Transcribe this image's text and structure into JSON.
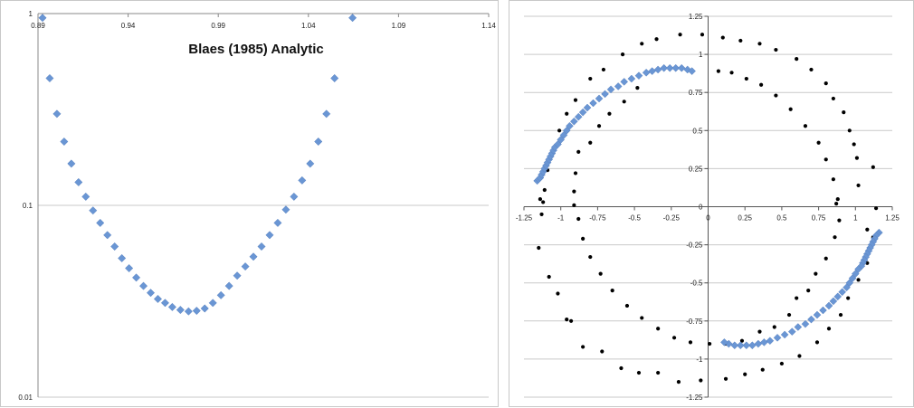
{
  "chart_data": [
    {
      "type": "scatter",
      "title": "Blaes (1985) Analytic",
      "xlabel": "",
      "ylabel": "",
      "xlim": [
        0.89,
        1.14
      ],
      "ylim": [
        0.01,
        1
      ],
      "yscale": "log",
      "x_ticks": [
        "0.89",
        "0.94",
        "0.99",
        "1.04",
        "1.09",
        "1.14"
      ],
      "y_ticks": [
        "1",
        "0.1",
        "0.01"
      ],
      "grid": "horizontal",
      "legend": "none",
      "series": [
        {
          "marker": "diamond",
          "color": "#6a96d4",
          "points": [
            [
              0.8925,
              0.95
            ],
            [
              0.8965,
              0.46
            ],
            [
              0.9005,
              0.3
            ],
            [
              0.9045,
              0.215
            ],
            [
              0.9085,
              0.165
            ],
            [
              0.9125,
              0.132
            ],
            [
              0.9165,
              0.111
            ],
            [
              0.9205,
              0.094
            ],
            [
              0.9245,
              0.081
            ],
            [
              0.9285,
              0.07
            ],
            [
              0.9325,
              0.061
            ],
            [
              0.9365,
              0.053
            ],
            [
              0.9405,
              0.047
            ],
            [
              0.9445,
              0.042
            ],
            [
              0.9485,
              0.038
            ],
            [
              0.9525,
              0.035
            ],
            [
              0.9565,
              0.0325
            ],
            [
              0.9605,
              0.031
            ],
            [
              0.9645,
              0.0295
            ],
            [
              0.969,
              0.0285
            ],
            [
              0.9735,
              0.028
            ],
            [
              0.978,
              0.0282
            ],
            [
              0.9825,
              0.029
            ],
            [
              0.987,
              0.031
            ],
            [
              0.9915,
              0.034
            ],
            [
              0.996,
              0.038
            ],
            [
              1.0005,
              0.043
            ],
            [
              1.005,
              0.048
            ],
            [
              1.0095,
              0.054
            ],
            [
              1.014,
              0.061
            ],
            [
              1.0185,
              0.07
            ],
            [
              1.023,
              0.081
            ],
            [
              1.0275,
              0.095
            ],
            [
              1.032,
              0.111
            ],
            [
              1.0365,
              0.135
            ],
            [
              1.041,
              0.165
            ],
            [
              1.0455,
              0.215
            ],
            [
              1.05,
              0.3
            ],
            [
              1.0545,
              0.46
            ],
            [
              1.0645,
              0.95
            ]
          ]
        }
      ]
    },
    {
      "type": "scatter",
      "title": "",
      "xlabel": "",
      "ylabel": "",
      "xlim": [
        -1.25,
        1.25
      ],
      "ylim": [
        -1.25,
        1.25
      ],
      "x_ticks": [
        "-1.25",
        "-1",
        "-0.75",
        "-0.5",
        "-0.25",
        "0",
        "0.25",
        "0.5",
        "0.75",
        "1",
        "1.25"
      ],
      "y_ticks": [
        "1.25",
        "1",
        "0.75",
        "0.5",
        "0.25",
        "0",
        "-0.25",
        "-0.5",
        "-0.75",
        "-1",
        "-1.25"
      ],
      "grid": "horizontal",
      "legend": "none",
      "series": [
        {
          "marker": "dot",
          "color": "#000000",
          "points": [
            [
              -0.04,
              1.13
            ],
            [
              0.1,
              1.11
            ],
            [
              0.22,
              1.09
            ],
            [
              0.35,
              1.07
            ],
            [
              0.46,
              1.03
            ],
            [
              0.6,
              0.97
            ],
            [
              0.7,
              0.9
            ],
            [
              0.8,
              0.81
            ],
            [
              0.85,
              0.71
            ],
            [
              0.92,
              0.62
            ],
            [
              0.96,
              0.5
            ],
            [
              0.99,
              0.41
            ],
            [
              1.01,
              0.32
            ],
            [
              1.02,
              0.14
            ],
            [
              1.12,
              0.26
            ],
            [
              1.14,
              -0.01
            ],
            [
              1.08,
              -0.15
            ],
            [
              0.07,
              0.89
            ],
            [
              0.16,
              0.88
            ],
            [
              0.26,
              0.84
            ],
            [
              0.36,
              0.8
            ],
            [
              0.46,
              0.73
            ],
            [
              0.56,
              0.64
            ],
            [
              0.66,
              0.53
            ],
            [
              0.75,
              0.42
            ],
            [
              0.8,
              0.31
            ],
            [
              0.85,
              0.18
            ],
            [
              0.88,
              0.05
            ],
            [
              0.87,
              0.02
            ],
            [
              -0.19,
              1.13
            ],
            [
              -0.35,
              1.1
            ],
            [
              -0.45,
              1.07
            ],
            [
              -0.58,
              1.0
            ],
            [
              -0.71,
              0.9
            ],
            [
              -0.8,
              0.84
            ],
            [
              -0.9,
              0.7
            ],
            [
              -0.96,
              0.61
            ],
            [
              -1.01,
              0.5
            ],
            [
              -1.05,
              0.37
            ],
            [
              -1.09,
              0.24
            ],
            [
              -1.11,
              0.11
            ],
            [
              -1.14,
              0.05
            ],
            [
              -1.12,
              0.03
            ],
            [
              -0.91,
              0.01
            ],
            [
              -0.91,
              0.1
            ],
            [
              -0.9,
              0.22
            ],
            [
              -0.88,
              0.36
            ],
            [
              -0.8,
              0.42
            ],
            [
              -0.74,
              0.53
            ],
            [
              -0.67,
              0.61
            ],
            [
              -0.57,
              0.69
            ],
            [
              -0.48,
              0.78
            ],
            [
              -1.13,
              -0.05
            ],
            [
              -1.15,
              -0.27
            ],
            [
              -1.08,
              -0.46
            ],
            [
              -1.02,
              -0.57
            ],
            [
              -0.96,
              -0.74
            ],
            [
              -0.93,
              -0.75
            ],
            [
              -0.85,
              -0.92
            ],
            [
              -0.72,
              -0.95
            ],
            [
              -0.59,
              -1.06
            ],
            [
              -0.47,
              -1.09
            ],
            [
              -0.34,
              -1.09
            ],
            [
              -0.2,
              -1.15
            ],
            [
              -0.05,
              -1.14
            ],
            [
              0.12,
              -1.13
            ],
            [
              0.25,
              -1.1
            ],
            [
              0.37,
              -1.07
            ],
            [
              0.5,
              -1.03
            ],
            [
              0.62,
              -0.98
            ],
            [
              0.74,
              -0.89
            ],
            [
              0.82,
              -0.8
            ],
            [
              0.9,
              -0.71
            ],
            [
              0.95,
              -0.6
            ],
            [
              1.02,
              -0.48
            ],
            [
              1.08,
              -0.37
            ],
            [
              1.12,
              -0.2
            ],
            [
              -0.88,
              -0.08
            ],
            [
              -0.85,
              -0.21
            ],
            [
              -0.8,
              -0.33
            ],
            [
              -0.73,
              -0.44
            ],
            [
              -0.65,
              -0.55
            ],
            [
              -0.55,
              -0.65
            ],
            [
              -0.45,
              -0.73
            ],
            [
              -0.34,
              -0.8
            ],
            [
              -0.23,
              -0.86
            ],
            [
              -0.12,
              -0.89
            ],
            [
              0.01,
              -0.9
            ],
            [
              0.12,
              -0.9
            ],
            [
              0.23,
              -0.88
            ],
            [
              0.35,
              -0.82
            ],
            [
              0.45,
              -0.79
            ],
            [
              0.55,
              -0.71
            ],
            [
              0.6,
              -0.6
            ],
            [
              0.68,
              -0.55
            ],
            [
              0.73,
              -0.44
            ],
            [
              0.8,
              -0.34
            ],
            [
              0.86,
              -0.2
            ],
            [
              0.89,
              -0.09
            ]
          ]
        },
        {
          "marker": "diamond",
          "color": "#6a96d4",
          "points": [
            [
              -1.16,
              0.17
            ],
            [
              -1.15,
              0.18
            ],
            [
              -1.14,
              0.19
            ],
            [
              -1.13,
              0.21
            ],
            [
              -1.12,
              0.23
            ],
            [
              -1.11,
              0.25
            ],
            [
              -1.1,
              0.27
            ],
            [
              -1.09,
              0.29
            ],
            [
              -1.08,
              0.31
            ],
            [
              -1.07,
              0.33
            ],
            [
              -1.06,
              0.35
            ],
            [
              -1.05,
              0.37
            ],
            [
              -1.04,
              0.39
            ],
            [
              -1.02,
              0.41
            ],
            [
              -1.0,
              0.44
            ],
            [
              -0.98,
              0.47
            ],
            [
              -0.96,
              0.5
            ],
            [
              -0.94,
              0.53
            ],
            [
              -0.91,
              0.56
            ],
            [
              -0.88,
              0.59
            ],
            [
              -0.85,
              0.62
            ],
            [
              -0.82,
              0.65
            ],
            [
              -0.78,
              0.68
            ],
            [
              -0.74,
              0.71
            ],
            [
              -0.7,
              0.74
            ],
            [
              -0.66,
              0.77
            ],
            [
              -0.61,
              0.79
            ],
            [
              -0.57,
              0.82
            ],
            [
              -0.52,
              0.84
            ],
            [
              -0.47,
              0.86
            ],
            [
              -0.42,
              0.88
            ],
            [
              -0.38,
              0.89
            ],
            [
              -0.34,
              0.9
            ],
            [
              -0.3,
              0.91
            ],
            [
              -0.26,
              0.91
            ],
            [
              -0.22,
              0.91
            ],
            [
              -0.18,
              0.91
            ],
            [
              -0.14,
              0.9
            ],
            [
              -0.11,
              0.89
            ],
            [
              1.16,
              -0.17
            ],
            [
              1.15,
              -0.18
            ],
            [
              1.14,
              -0.19
            ],
            [
              1.13,
              -0.21
            ],
            [
              1.12,
              -0.23
            ],
            [
              1.11,
              -0.25
            ],
            [
              1.1,
              -0.27
            ],
            [
              1.09,
              -0.29
            ],
            [
              1.08,
              -0.31
            ],
            [
              1.07,
              -0.33
            ],
            [
              1.06,
              -0.35
            ],
            [
              1.05,
              -0.37
            ],
            [
              1.04,
              -0.39
            ],
            [
              1.02,
              -0.41
            ],
            [
              1.0,
              -0.44
            ],
            [
              0.98,
              -0.47
            ],
            [
              0.96,
              -0.5
            ],
            [
              0.94,
              -0.53
            ],
            [
              0.91,
              -0.56
            ],
            [
              0.88,
              -0.59
            ],
            [
              0.85,
              -0.62
            ],
            [
              0.82,
              -0.65
            ],
            [
              0.78,
              -0.68
            ],
            [
              0.74,
              -0.71
            ],
            [
              0.7,
              -0.74
            ],
            [
              0.66,
              -0.77
            ],
            [
              0.61,
              -0.79
            ],
            [
              0.57,
              -0.82
            ],
            [
              0.52,
              -0.84
            ],
            [
              0.47,
              -0.86
            ],
            [
              0.42,
              -0.88
            ],
            [
              0.38,
              -0.89
            ],
            [
              0.34,
              -0.9
            ],
            [
              0.3,
              -0.91
            ],
            [
              0.26,
              -0.91
            ],
            [
              0.22,
              -0.91
            ],
            [
              0.18,
              -0.91
            ],
            [
              0.14,
              -0.9
            ],
            [
              0.11,
              -0.89
            ]
          ]
        }
      ]
    }
  ]
}
